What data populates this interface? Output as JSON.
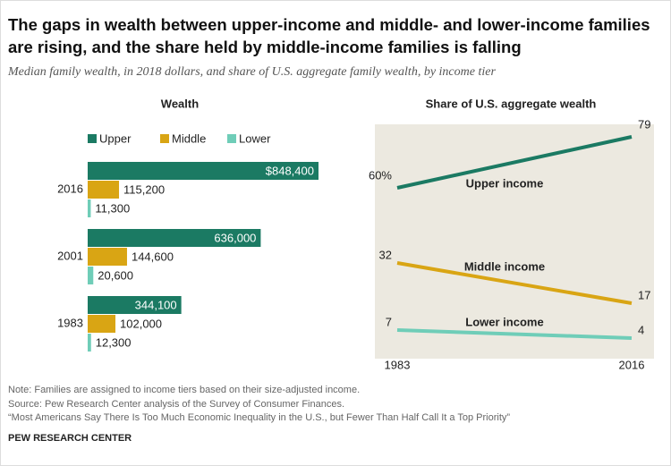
{
  "title": "The gaps in wealth between upper-income and middle- and lower-income families are rising, and the share held by middle-income families is falling",
  "subtitle": "Median family wealth, in 2018 dollars, and share of U.S. aggregate family wealth, by income tier",
  "notes": [
    "Note: Families are assigned to income tiers based on their size-adjusted income.",
    "Source: Pew Research Center analysis of the Survey of Consumer Finances.",
    "“Most Americans Say There Is Too Much Economic Inequality in the U.S., but Fewer Than Half Call It a Top Priority”"
  ],
  "brand": "PEW RESEARCH CENTER",
  "chart_data": [
    {
      "type": "bar",
      "orientation": "horizontal",
      "title": "Wealth",
      "categories": [
        "2016",
        "2001",
        "1983"
      ],
      "series": [
        {
          "name": "Upper",
          "color": "#1b7a63",
          "values": [
            848400,
            636000,
            344100
          ],
          "value_labels": [
            "$848,400",
            "636,000",
            "344,100"
          ]
        },
        {
          "name": "Middle",
          "color": "#d9a514",
          "values": [
            115200,
            144600,
            102000
          ],
          "value_labels": [
            "115,200",
            "144,600",
            "102,000"
          ]
        },
        {
          "name": "Lower",
          "color": "#6fcdb8",
          "values": [
            11300,
            20600,
            12300
          ],
          "value_labels": [
            "11,300",
            "20,600",
            "12,300"
          ]
        }
      ]
    },
    {
      "type": "line",
      "title": "Share of U.S. aggregate wealth",
      "x": [
        "1983",
        "2016"
      ],
      "series": [
        {
          "name": "Upper income",
          "color": "#1b7a63",
          "values": [
            60,
            79
          ],
          "value_labels": [
            "60%",
            "79"
          ]
        },
        {
          "name": "Middle income",
          "color": "#d9a514",
          "values": [
            32,
            17
          ]
        },
        {
          "name": "Lower income",
          "color": "#6fcdb8",
          "values": [
            7,
            4
          ]
        }
      ]
    }
  ]
}
